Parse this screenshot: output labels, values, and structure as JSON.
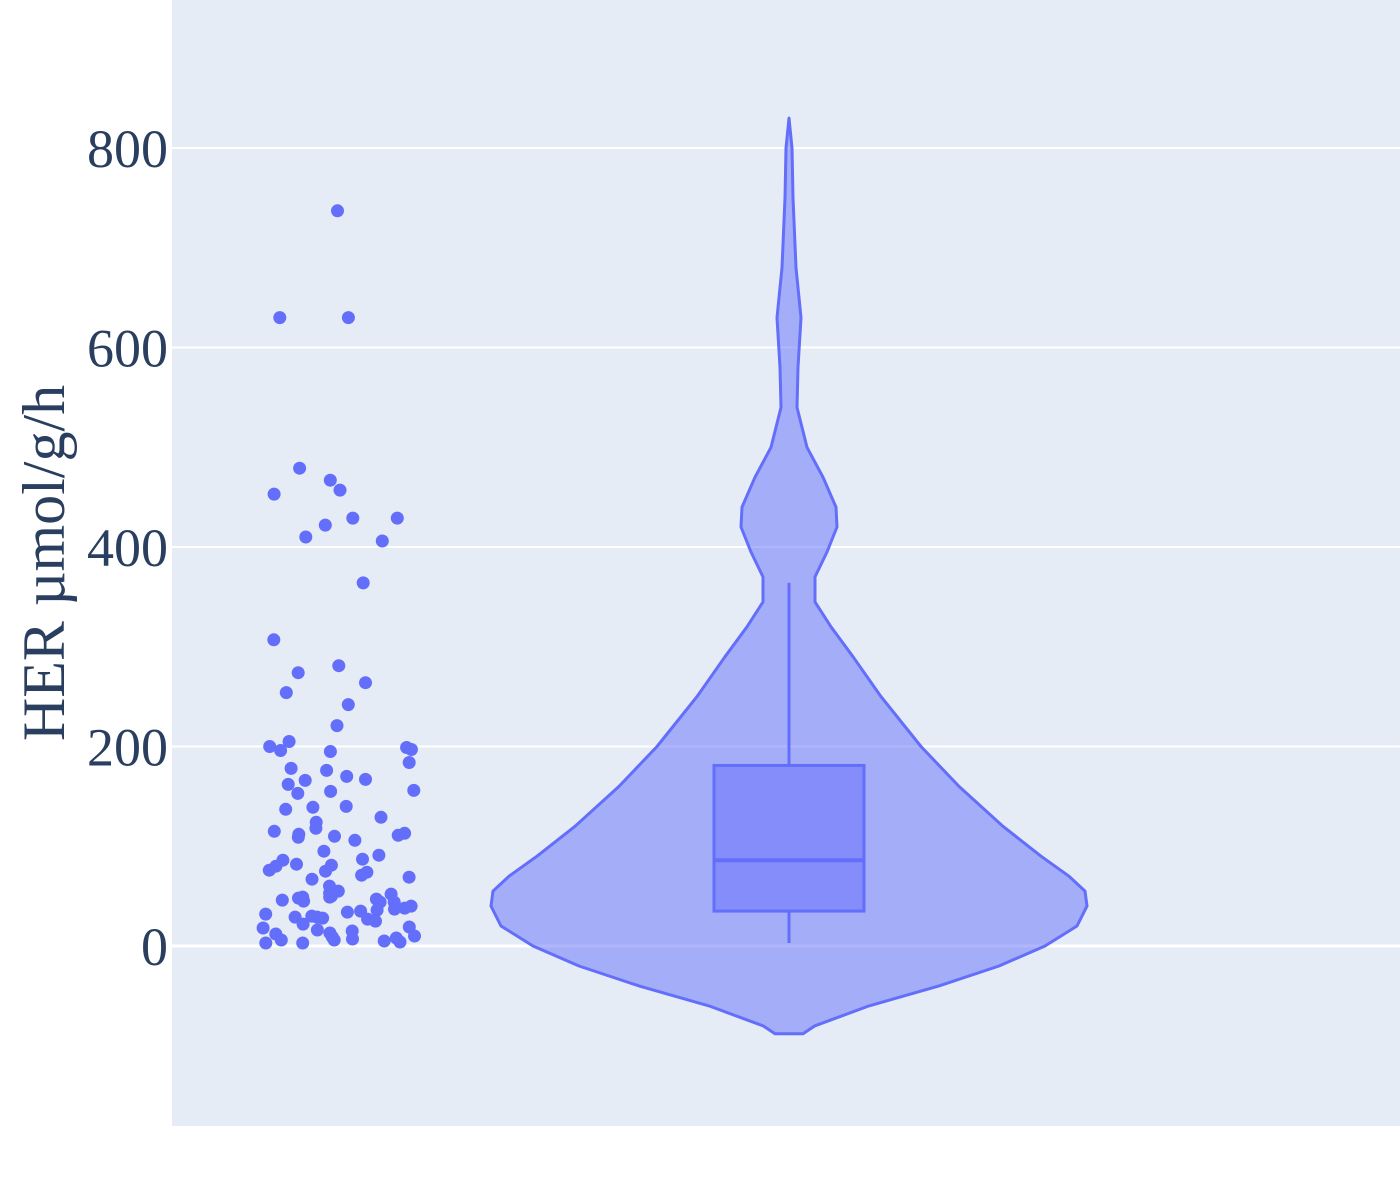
{
  "chart_data": {
    "type": "violin",
    "title": "",
    "xlabel": "",
    "ylabel": "HER µmol/g/h",
    "ylim": [
      -180,
      950
    ],
    "yticks": [
      0,
      200,
      400,
      600,
      800
    ],
    "grid": true,
    "colors": {
      "plot_bg": "#e5ecf6",
      "grid": "#ffffff",
      "series": "#636efa",
      "violin_fill": "rgba(99,110,250,0.5)",
      "box_fill": "rgba(99,110,250,0.5)",
      "text": "#2a3f5f"
    },
    "box": {
      "q1": 35,
      "median": 86,
      "q3": 181,
      "whisker_low": 3,
      "whisker_high": 364
    },
    "violin_extent": [
      -88,
      830
    ],
    "points": [
      737,
      630,
      630,
      479,
      467,
      457,
      453,
      429,
      429,
      422,
      410,
      406,
      364,
      307,
      281,
      274,
      264,
      254,
      242,
      221,
      205,
      200,
      199,
      197,
      196,
      195,
      184,
      178,
      176,
      170,
      167,
      166,
      162,
      156,
      155,
      153,
      140,
      139,
      137,
      129,
      124,
      118,
      115,
      113,
      112,
      111,
      110,
      109,
      106,
      95,
      91,
      87,
      86,
      82,
      81,
      80,
      76,
      75,
      74,
      71,
      69,
      67,
      60,
      55,
      53,
      52,
      50,
      49,
      49,
      48,
      47,
      46,
      45,
      44,
      44,
      40,
      38,
      37,
      36,
      35,
      34,
      32,
      30,
      29,
      29,
      28,
      27,
      25,
      22,
      19,
      18,
      16,
      15,
      13,
      12,
      10,
      9,
      8,
      7,
      6,
      6,
      5,
      4,
      3,
      3
    ]
  }
}
